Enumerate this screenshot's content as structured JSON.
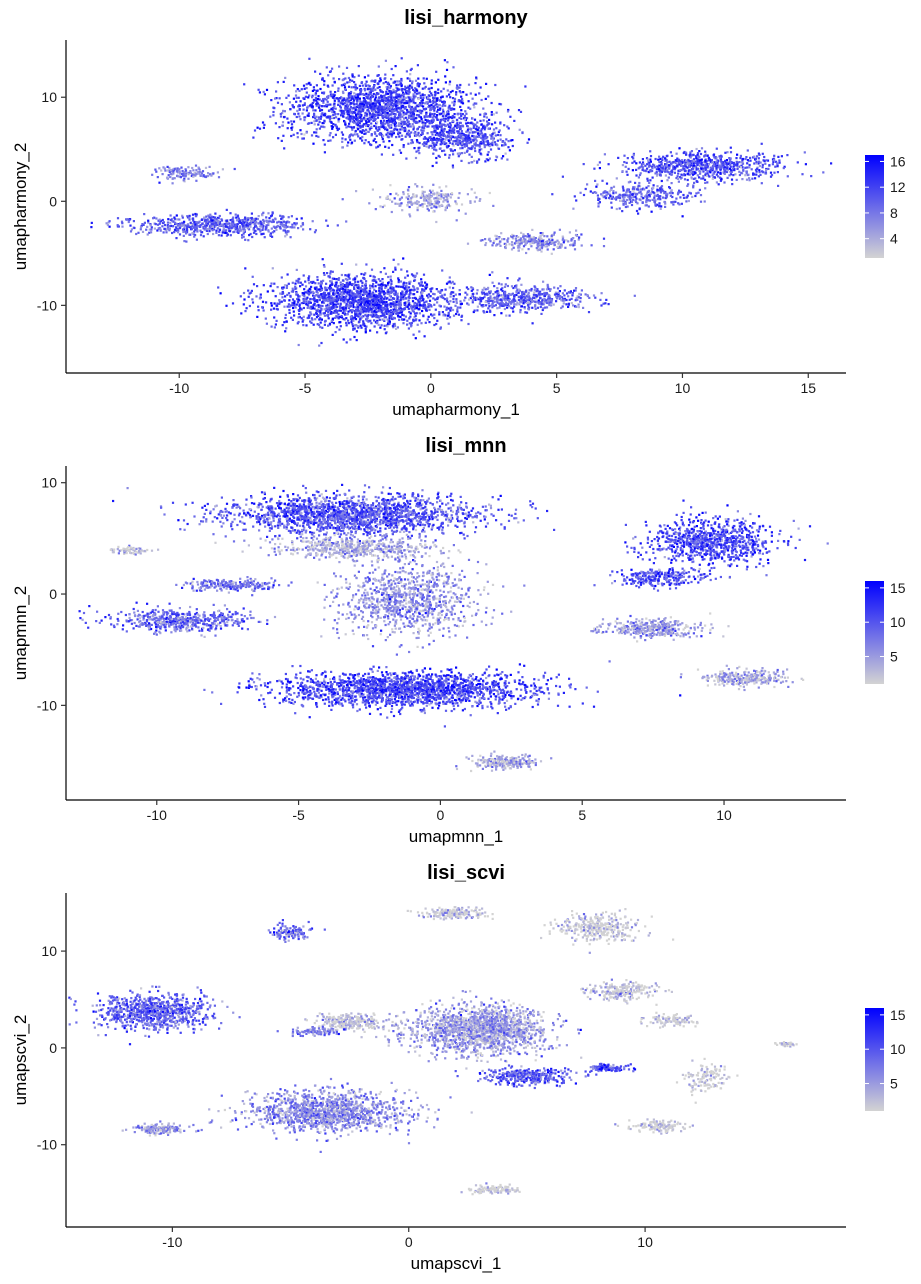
{
  "chart_data": [
    {
      "type": "scatter",
      "title": "lisi_harmony",
      "xlabel": "umapharmony_1",
      "ylabel": "umapharmony_2",
      "xlim": [
        -14.5,
        16.5
      ],
      "ylim": [
        -16.5,
        15.5
      ],
      "x_ticks": [
        -10,
        -5,
        0,
        5,
        10,
        15
      ],
      "y_ticks": [
        -10,
        0,
        10
      ],
      "legend": {
        "position": "right",
        "breaks": [
          4,
          8,
          12,
          16
        ],
        "min": 1,
        "max": 17,
        "low_color": "#d3d3d3",
        "high_color": "#0000ff"
      },
      "clusters": [
        {
          "x": -2.0,
          "y": 9.0,
          "sx": 3.8,
          "sy": 3.2,
          "v": 12,
          "n": 1800
        },
        {
          "x": 1.2,
          "y": 6.2,
          "sx": 2.0,
          "sy": 1.8,
          "v": 11,
          "n": 500
        },
        {
          "x": 10.8,
          "y": 3.5,
          "sx": 3.1,
          "sy": 1.4,
          "v": 11,
          "n": 700
        },
        {
          "x": 8.3,
          "y": 0.6,
          "sx": 2.2,
          "sy": 1.2,
          "v": 10,
          "n": 300
        },
        {
          "x": -8.5,
          "y": -2.2,
          "sx": 3.6,
          "sy": 1.0,
          "v": 10,
          "n": 650
        },
        {
          "x": -9.8,
          "y": 2.8,
          "sx": 1.4,
          "sy": 0.7,
          "v": 8,
          "n": 120
        },
        {
          "x": -2.8,
          "y": -9.5,
          "sx": 3.6,
          "sy": 2.6,
          "v": 12,
          "n": 1700
        },
        {
          "x": 3.5,
          "y": -9.2,
          "sx": 2.8,
          "sy": 1.2,
          "v": 10,
          "n": 500
        },
        {
          "x": 4.2,
          "y": -3.8,
          "sx": 1.8,
          "sy": 0.9,
          "v": 7,
          "n": 250
        },
        {
          "x": -0.2,
          "y": 0.3,
          "sx": 1.8,
          "sy": 1.1,
          "v": 5,
          "n": 220
        }
      ]
    },
    {
      "type": "scatter",
      "title": "lisi_mnn",
      "xlabel": "umapmnn_1",
      "ylabel": "umapmnn_2",
      "xlim": [
        -13.2,
        14.3
      ],
      "ylim": [
        -18.5,
        11.5
      ],
      "x_ticks": [
        -10,
        -5,
        0,
        5,
        10
      ],
      "y_ticks": [
        -10,
        0,
        10
      ],
      "legend": {
        "position": "right",
        "breaks": [
          5,
          10,
          15
        ],
        "min": 1,
        "max": 16,
        "low_color": "#d3d3d3",
        "high_color": "#0000ff"
      },
      "clusters": [
        {
          "x": -3.2,
          "y": 7.2,
          "sx": 4.6,
          "sy": 1.8,
          "v": 10,
          "n": 1800
        },
        {
          "x": -3.0,
          "y": 4.2,
          "sx": 2.8,
          "sy": 1.0,
          "v": 4,
          "n": 500
        },
        {
          "x": -9.2,
          "y": -2.3,
          "sx": 2.4,
          "sy": 1.0,
          "v": 9,
          "n": 500
        },
        {
          "x": -7.5,
          "y": 0.9,
          "sx": 1.6,
          "sy": 0.5,
          "v": 8,
          "n": 200
        },
        {
          "x": -1.2,
          "y": -0.5,
          "sx": 2.4,
          "sy": 3.2,
          "v": 6,
          "n": 900
        },
        {
          "x": -1.3,
          "y": -8.5,
          "sx": 4.6,
          "sy": 1.6,
          "v": 11,
          "n": 1800
        },
        {
          "x": 9.5,
          "y": 4.8,
          "sx": 2.2,
          "sy": 2.0,
          "v": 11,
          "n": 800
        },
        {
          "x": 7.8,
          "y": 1.6,
          "sx": 1.6,
          "sy": 0.8,
          "v": 10,
          "n": 250
        },
        {
          "x": 7.5,
          "y": -3.0,
          "sx": 2.0,
          "sy": 0.8,
          "v": 5,
          "n": 350
        },
        {
          "x": 10.8,
          "y": -7.5,
          "sx": 1.6,
          "sy": 0.7,
          "v": 4,
          "n": 250
        },
        {
          "x": 2.2,
          "y": -15.0,
          "sx": 1.1,
          "sy": 0.6,
          "v": 4,
          "n": 220
        },
        {
          "x": -11.0,
          "y": 4.0,
          "sx": 0.8,
          "sy": 0.3,
          "v": 2,
          "n": 60
        }
      ]
    },
    {
      "type": "scatter",
      "title": "lisi_scvi",
      "xlabel": "umapscvi_1",
      "ylabel": "umapscvi_2",
      "xlim": [
        -14.5,
        18.5
      ],
      "ylim": [
        -18.5,
        16.0
      ],
      "x_ticks": [
        -10,
        0,
        10
      ],
      "y_ticks": [
        -10,
        0,
        10
      ],
      "legend": {
        "position": "right",
        "breaks": [
          5,
          10,
          15
        ],
        "min": 1,
        "max": 16,
        "low_color": "#d3d3d3",
        "high_color": "#0000ff"
      },
      "clusters": [
        {
          "x": -10.8,
          "y": 3.8,
          "sx": 2.4,
          "sy": 1.8,
          "v": 9,
          "n": 800
        },
        {
          "x": -5.0,
          "y": 12.0,
          "sx": 0.8,
          "sy": 0.8,
          "v": 8,
          "n": 120
        },
        {
          "x": -3.5,
          "y": -6.5,
          "sx": 3.4,
          "sy": 2.0,
          "v": 6,
          "n": 1200
        },
        {
          "x": -2.5,
          "y": 2.8,
          "sx": 1.4,
          "sy": 0.8,
          "v": 2,
          "n": 250
        },
        {
          "x": -10.5,
          "y": -8.3,
          "sx": 1.2,
          "sy": 0.5,
          "v": 5,
          "n": 150
        },
        {
          "x": 3.0,
          "y": 2.0,
          "sx": 3.0,
          "sy": 2.5,
          "v": 5,
          "n": 1500
        },
        {
          "x": 5.0,
          "y": -2.8,
          "sx": 1.8,
          "sy": 0.9,
          "v": 10,
          "n": 350
        },
        {
          "x": 8.3,
          "y": -2.0,
          "sx": 0.9,
          "sy": 0.4,
          "v": 10,
          "n": 100
        },
        {
          "x": 1.8,
          "y": 14.0,
          "sx": 1.5,
          "sy": 0.6,
          "v": 1,
          "n": 150
        },
        {
          "x": 8.0,
          "y": 12.5,
          "sx": 1.8,
          "sy": 1.5,
          "v": 1,
          "n": 300
        },
        {
          "x": 9.0,
          "y": 6.0,
          "sx": 1.6,
          "sy": 1.0,
          "v": 2,
          "n": 200
        },
        {
          "x": 11.0,
          "y": 3.0,
          "sx": 1.0,
          "sy": 0.6,
          "v": 1,
          "n": 100
        },
        {
          "x": 10.5,
          "y": -8.0,
          "sx": 1.2,
          "sy": 0.6,
          "v": 1,
          "n": 120
        },
        {
          "x": 3.5,
          "y": -14.5,
          "sx": 1.0,
          "sy": 0.5,
          "v": 1,
          "n": 100
        },
        {
          "x": 12.5,
          "y": -3.0,
          "sx": 1.0,
          "sy": 1.5,
          "v": 1,
          "n": 120
        },
        {
          "x": 16.0,
          "y": 0.5,
          "sx": 0.6,
          "sy": 0.2,
          "v": 1,
          "n": 30
        },
        {
          "x": -4.0,
          "y": 1.8,
          "sx": 1.0,
          "sy": 0.4,
          "v": 7,
          "n": 100
        }
      ]
    }
  ]
}
